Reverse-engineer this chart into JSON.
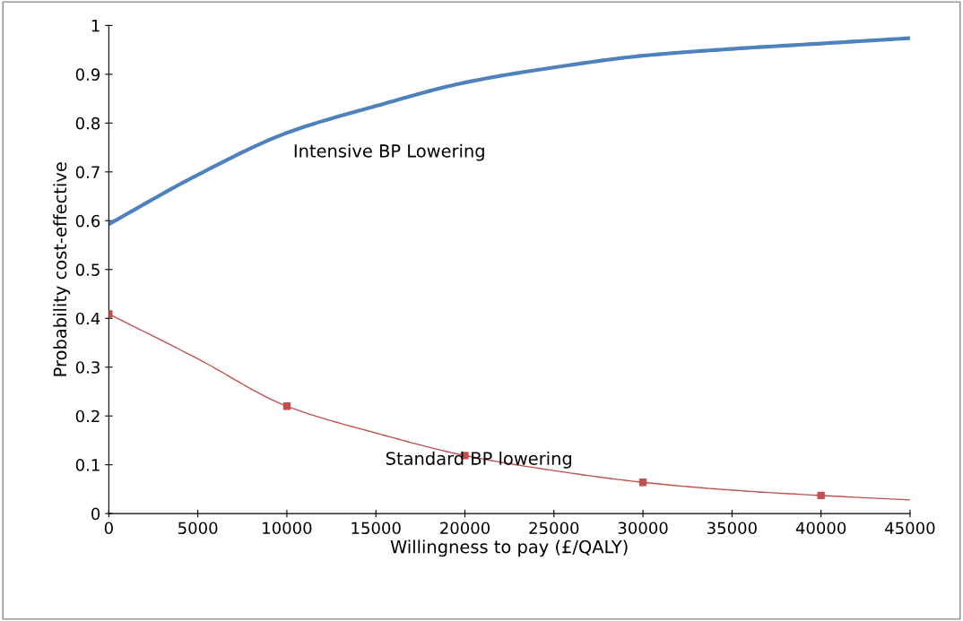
{
  "chart_data": {
    "type": "line",
    "xlabel": "Willingness to pay (£/QALY)",
    "ylabel": "Probability cost-effective",
    "x": [
      0,
      5000,
      10000,
      15000,
      20000,
      25000,
      30000,
      35000,
      40000,
      45000
    ],
    "series": [
      {
        "color": "#4f81bd",
        "marker": "none",
        "values": [
          0.593,
          0.694,
          0.78,
          0.835,
          0.883,
          0.914,
          0.938,
          0.952,
          0.963,
          0.974
        ]
      },
      {
        "color": "#c0504d",
        "marker": "none",
        "values": [
          0.409,
          0.317,
          0.22,
          0.165,
          0.119,
          0.088,
          0.064,
          0.048,
          0.037,
          0.028
        ]
      },
      {
        "type": "scatter",
        "color": "#c0504d",
        "marker": "square",
        "x": [
          0,
          10000,
          20000,
          30000,
          40000
        ],
        "values": [
          0.409,
          0.22,
          0.119,
          0.064,
          0.037
        ]
      }
    ],
    "annotations": [
      "Intensive BP Lowering",
      "Standard BP lowering"
    ],
    "xlim": [
      0,
      45000
    ],
    "xticks": [
      0,
      5000,
      10000,
      15000,
      20000,
      25000,
      30000,
      35000,
      40000,
      45000
    ],
    "ylim": [
      0,
      1
    ],
    "yticks": [
      0,
      0.1,
      0.2,
      0.3,
      0.4,
      0.5,
      0.6,
      0.7,
      0.8,
      0.9,
      1
    ],
    "grid": false,
    "legend": false
  }
}
